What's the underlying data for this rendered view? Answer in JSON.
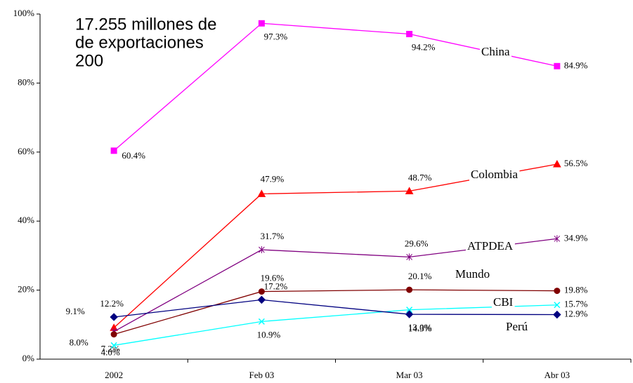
{
  "chart_data": {
    "type": "line",
    "annotation": [
      "17.255 millones de",
      "de exportaciones",
      "200"
    ],
    "categories": [
      "2002",
      "Feb 03",
      "Mar 03",
      "Abr 03"
    ],
    "ylim": [
      0,
      100
    ],
    "yticks": [
      {
        "value": 0,
        "label": "0%"
      },
      {
        "value": 20,
        "label": "20%"
      },
      {
        "value": 40,
        "label": "40%"
      },
      {
        "value": 60,
        "label": "60%"
      },
      {
        "value": 80,
        "label": "80%"
      },
      {
        "value": 100,
        "label": "100%"
      }
    ],
    "grid": false,
    "series": [
      {
        "name": "China",
        "color": "#ff00ff",
        "marker": "square",
        "values": [
          60.4,
          97.3,
          94.2,
          84.9
        ],
        "value_labels": [
          "60.4%",
          "97.3%",
          "94.2%",
          "84.9%"
        ]
      },
      {
        "name": "Colombia",
        "color": "#ff0000",
        "marker": "triangle",
        "values": [
          9.1,
          47.9,
          48.7,
          56.5
        ],
        "value_labels": [
          "9.1%",
          "47.9%",
          "48.7%",
          "56.5%"
        ]
      },
      {
        "name": "ATPDEA",
        "color": "#800080",
        "marker": "asterisk",
        "values": [
          8.0,
          31.7,
          29.6,
          34.9
        ],
        "value_labels": [
          "8.0%",
          "31.7%",
          "29.6%",
          "34.9%"
        ]
      },
      {
        "name": "Mundo",
        "color": "#800000",
        "marker": "circle",
        "values": [
          7.2,
          19.6,
          20.1,
          19.8
        ],
        "value_labels": [
          "7.2%",
          "19.6%",
          "20.1%",
          "19.8%"
        ]
      },
      {
        "name": "CBI",
        "color": "#00ffff",
        "marker": "x",
        "values": [
          4.0,
          10.9,
          14.3,
          15.7
        ],
        "value_labels": [
          "4.0%",
          "10.9%",
          "14.3%",
          "15.7%"
        ]
      },
      {
        "name": "Perú",
        "color": "#000080",
        "marker": "diamond",
        "values": [
          12.2,
          17.2,
          13.0,
          12.9
        ],
        "value_labels": [
          "12.2%",
          "17.2%",
          "13.0%",
          "12.9%"
        ]
      }
    ]
  }
}
